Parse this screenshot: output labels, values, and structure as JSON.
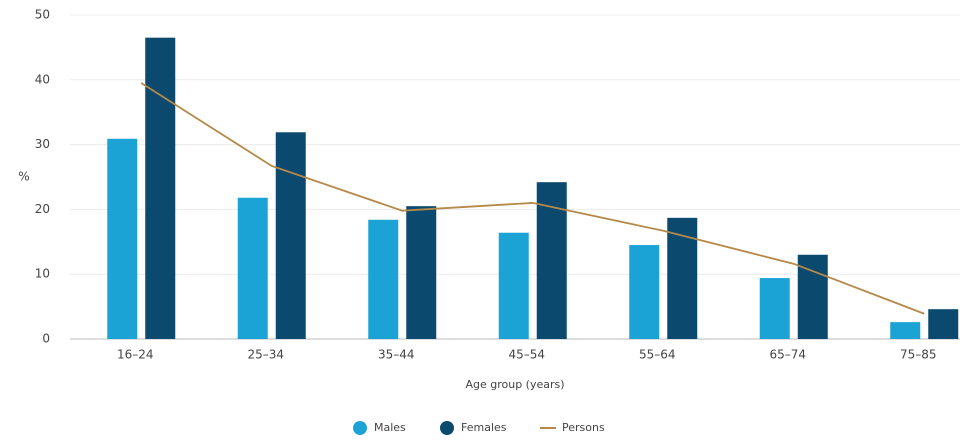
{
  "chart_data": {
    "type": "bar_line",
    "y_label": "%",
    "x_label": "Age group (years)",
    "categories": [
      "16–24",
      "25–34",
      "35–44",
      "45–54",
      "55–64",
      "65–74",
      "75–85"
    ],
    "series": [
      {
        "name": "Males",
        "type": "bar",
        "color": "#1ba3d6",
        "values": [
          30.9,
          21.8,
          18.4,
          16.4,
          14.5,
          9.4,
          2.6
        ]
      },
      {
        "name": "Females",
        "type": "bar",
        "color": "#0b4a6e",
        "values": [
          46.5,
          31.9,
          20.5,
          24.2,
          18.7,
          13.0,
          4.6
        ]
      },
      {
        "name": "Persons",
        "type": "line",
        "color": "#b5894a",
        "values": [
          39.5,
          26.7,
          19.8,
          21.0,
          16.7,
          11.6,
          3.9
        ]
      }
    ],
    "ylim": [
      0,
      50
    ],
    "yticks": [
      0,
      10,
      20,
      30,
      40,
      50
    ],
    "grid": true
  }
}
